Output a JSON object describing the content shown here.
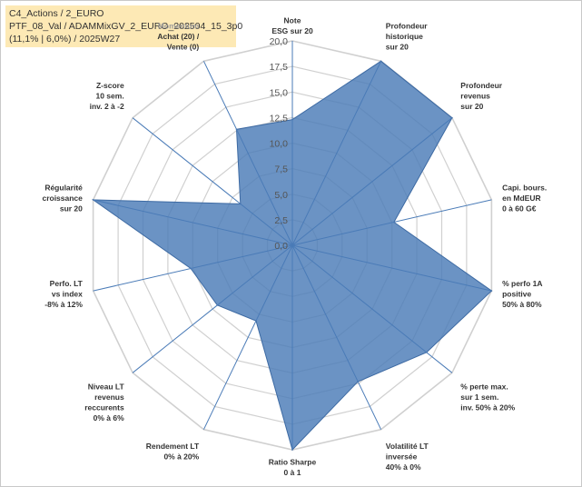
{
  "header": {
    "line1": "C4_Actions / 2_EURO",
    "line2": "PTF_08_Val / ADAMMixGV_2_EURO_202504_15_3p0",
    "line3": "(11,1% | 6,0%) / 2025W27"
  },
  "chart_data": {
    "type": "radar",
    "rmin": 0,
    "rmax": 20,
    "ticks": [
      "0,0",
      "2,5",
      "5,0",
      "7,5",
      "10,0",
      "12,5",
      "15,0",
      "17,5",
      "20,0"
    ],
    "tick_values": [
      0,
      2.5,
      5,
      7.5,
      10,
      12.5,
      15,
      17.5,
      20
    ],
    "sub_label": "Momentum",
    "axes": [
      {
        "label": [
          "Note",
          "ESG sur 20"
        ]
      },
      {
        "label": [
          "Profondeur",
          "historique",
          "sur 20"
        ]
      },
      {
        "label": [
          "Profondeur",
          "revenus",
          "sur 20"
        ]
      },
      {
        "label": [
          "Capi. bours.",
          "en MdEUR",
          "0 à 60 G€"
        ]
      },
      {
        "label": [
          "% perfo 1A",
          "positive",
          "50% à 80%"
        ]
      },
      {
        "label": [
          "% perte max.",
          "sur 1 sem.",
          "inv. 50% à 20%"
        ]
      },
      {
        "label": [
          "Volatilité LT",
          "inversée",
          "40% à 0%"
        ]
      },
      {
        "label": [
          "Ratio Sharpe",
          "0 à 1"
        ]
      },
      {
        "label": [
          "Rendement LT",
          "0% à 20%"
        ]
      },
      {
        "label": [
          "Niveau LT",
          "revenus",
          "reccurents",
          "0% à 6%"
        ]
      },
      {
        "label": [
          "Perfo. LT",
          "vs index",
          "-8% à 12%"
        ]
      },
      {
        "label": [
          "Régularité",
          "croissance",
          "sur 20"
        ]
      },
      {
        "label": [
          "Z-score",
          "10 sem.",
          "inv. 2 à -2"
        ]
      },
      {
        "label": [
          "Achat (20) /",
          "Vente (0)"
        ]
      }
    ],
    "series": [
      {
        "values": [
          12.3,
          20,
          20,
          10.2,
          20,
          16.8,
          14.8,
          20,
          8.2,
          9.4,
          10.2,
          20,
          6.5,
          12.6
        ],
        "color": "#4a7bb7"
      }
    ],
    "grid": true,
    "grid_color": "#d0d0d0",
    "spoke_color": "#4a7bb7"
  }
}
